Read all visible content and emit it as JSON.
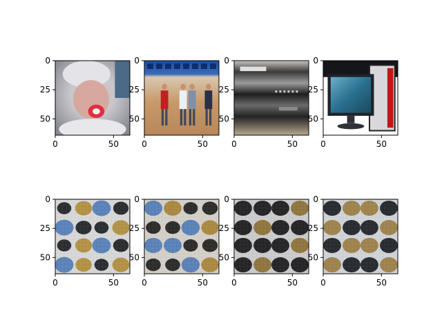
{
  "figure": {
    "layout": {
      "rows": 2,
      "cols": 4
    },
    "axis_color": "#000000",
    "background": "#ffffff"
  },
  "chart_data": [
    {
      "type": "image",
      "content": "photo of a newborn baby with a red pacifier",
      "xlim": [
        0,
        64
      ],
      "ylim": [
        64,
        0
      ],
      "xticks": [
        0,
        50
      ],
      "yticks": [
        0,
        25,
        50
      ],
      "xtick_labels": [
        "0",
        "50"
      ],
      "ytick_labels": [
        "0",
        "25",
        "50"
      ]
    },
    {
      "type": "image",
      "content": "photo of people in a gymnasium",
      "xlim": [
        0,
        64
      ],
      "ylim": [
        64,
        0
      ],
      "xticks": [
        0,
        50
      ],
      "yticks": [
        0,
        25,
        50
      ],
      "xtick_labels": [
        "0",
        "50"
      ],
      "ytick_labels": [
        "0",
        "25",
        "50"
      ]
    },
    {
      "type": "image",
      "content": "photo of stacked audio/video equipment",
      "xlim": [
        0,
        64
      ],
      "ylim": [
        64,
        0
      ],
      "xticks": [
        0,
        50
      ],
      "yticks": [
        0,
        25,
        50
      ],
      "xtick_labels": [
        "0",
        "50"
      ],
      "ytick_labels": [
        "0",
        "25",
        "50"
      ]
    },
    {
      "type": "image",
      "content": "photo of a desktop computer tower and monitor",
      "xlim": [
        0,
        64
      ],
      "ylim": [
        64,
        0
      ],
      "xticks": [
        0,
        50
      ],
      "yticks": [
        0,
        25,
        50
      ],
      "xtick_labels": [
        "0",
        "50"
      ],
      "ytick_labels": [
        "0",
        "25",
        "50"
      ]
    },
    {
      "type": "image",
      "content": "generated blob pattern, light with dark/amber blobs",
      "palette": [
        "#dcdcdc",
        "#101418",
        "#b08a30",
        "#4a78b8"
      ],
      "xlim": [
        0,
        64
      ],
      "ylim": [
        64,
        0
      ],
      "xticks": [
        0,
        50
      ],
      "yticks": [
        0,
        25,
        50
      ],
      "xtick_labels": [
        "0",
        "50"
      ],
      "ytick_labels": [
        "0",
        "25",
        "50"
      ]
    },
    {
      "type": "image",
      "content": "generated blob pattern, amber and dark blobs",
      "palette": [
        "#d8d4cc",
        "#141414",
        "#a8802c",
        "#4a78b8"
      ],
      "xlim": [
        0,
        64
      ],
      "ylim": [
        64,
        0
      ],
      "xticks": [
        0,
        50
      ],
      "yticks": [
        0,
        25,
        50
      ],
      "xtick_labels": [
        "0",
        "50"
      ],
      "ytick_labels": [
        "0",
        "25",
        "50"
      ]
    },
    {
      "type": "image",
      "content": "generated blob pattern, mostly dark blobs",
      "palette": [
        "#cfcfcf",
        "#0c0c10",
        "#8a6a2a",
        "#4a78b8"
      ],
      "xlim": [
        0,
        64
      ],
      "ylim": [
        64,
        0
      ],
      "xticks": [
        0,
        50
      ],
      "yticks": [
        0,
        25,
        50
      ],
      "xtick_labels": [
        "0",
        "50"
      ],
      "ytick_labels": [
        "0",
        "25",
        "50"
      ]
    },
    {
      "type": "image",
      "content": "generated blob pattern, dark blobs with blue tint",
      "palette": [
        "#d4d8dc",
        "#0e1218",
        "#9a7a3a",
        "#3a68b0"
      ],
      "xlim": [
        0,
        64
      ],
      "ylim": [
        64,
        0
      ],
      "xticks": [
        0,
        50
      ],
      "yticks": [
        0,
        25,
        50
      ],
      "xtick_labels": [
        "0",
        "50"
      ],
      "ytick_labels": [
        "0",
        "25",
        "50"
      ]
    }
  ]
}
